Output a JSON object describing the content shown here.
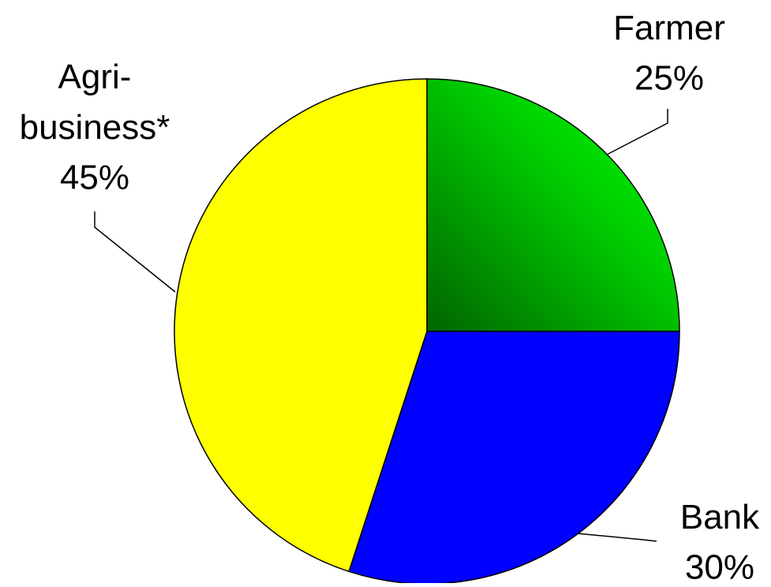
{
  "chart_data": {
    "type": "pie",
    "categories": [
      "Farmer",
      "Bank",
      "Agri-business*"
    ],
    "values": [
      25,
      30,
      45
    ],
    "value_labels": [
      "25%",
      "30%",
      "45%"
    ],
    "colors": [
      "#00ee00",
      "#0000ff",
      "#ffff00"
    ]
  }
}
